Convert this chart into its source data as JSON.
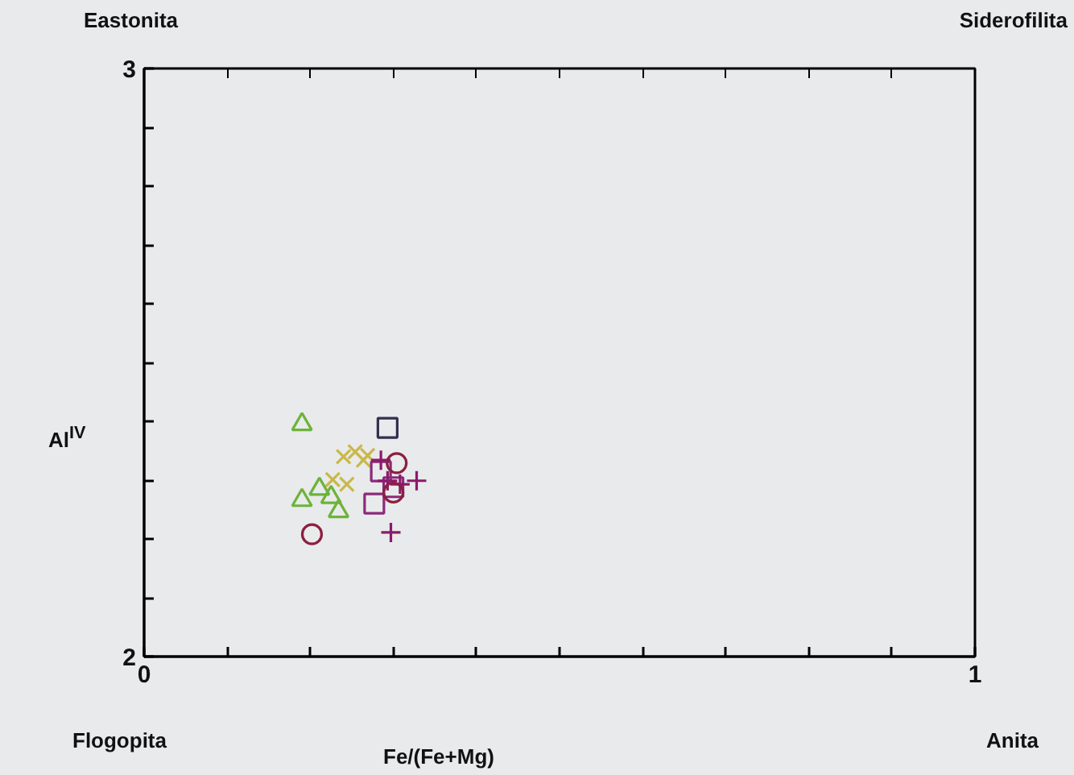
{
  "chart_data": {
    "type": "scatter",
    "xlabel": "Fe/(Fe+Mg)",
    "ylabel": "Al$^{IV}$",
    "xlim": [
      0,
      1
    ],
    "ylim": [
      2,
      3
    ],
    "xticks": [
      0,
      {
        "value": 0.1,
        "label": null
      },
      {
        "value": 0.2,
        "label": null
      },
      {
        "value": 0.3,
        "label": null
      },
      {
        "value": 0.4,
        "label": null
      },
      {
        "value": 0.5,
        "label": null
      },
      {
        "value": 0.6,
        "label": null
      },
      {
        "value": 0.7,
        "label": null
      },
      {
        "value": 0.8,
        "label": null
      },
      {
        "value": 0.9,
        "label": null
      },
      1
    ],
    "yticks": [
      2,
      {
        "value": 2.1,
        "label": null
      },
      {
        "value": 2.2,
        "label": null
      },
      {
        "value": 2.3,
        "label": null
      },
      {
        "value": 2.4,
        "label": null
      },
      {
        "value": 2.5,
        "label": null
      },
      {
        "value": 2.6,
        "label": null
      },
      {
        "value": 2.7,
        "label": null
      },
      {
        "value": 2.8,
        "label": null
      },
      {
        "value": 2.9,
        "label": null
      },
      3
    ],
    "grid": false,
    "annotations": [
      "Eastonita",
      "Siderofilita",
      "Flogopita",
      "Anita"
    ],
    "series": [
      {
        "color": "#6cb33a",
        "marker": "triangle",
        "x": [
          0.19,
          0.19,
          0.211,
          0.234,
          0.225
        ],
        "values": [
          2.395,
          2.266,
          2.285,
          2.247,
          2.271
        ]
      },
      {
        "color": "#c9b84a",
        "marker": "x",
        "x": [
          0.24,
          0.254,
          0.264,
          0.227,
          0.244,
          0.269
        ],
        "values": [
          2.34,
          2.348,
          2.334,
          2.301,
          2.293,
          2.342
        ]
      },
      {
        "color": "#303050",
        "marker": "square",
        "x": [
          0.293
        ],
        "values": [
          2.389
        ]
      },
      {
        "color": "#8b2a7a",
        "marker": "square",
        "x": [
          0.285,
          0.277,
          0.3
        ],
        "values": [
          2.315,
          2.26,
          2.288
        ]
      },
      {
        "color": "#8b1a6b",
        "marker": "cross",
        "x": [
          0.297,
          0.328,
          0.293,
          0.308,
          0.285
        ],
        "values": [
          2.211,
          2.299,
          2.299,
          2.293,
          2.334
        ]
      },
      {
        "color": "#8a2040",
        "marker": "circle",
        "x": [
          0.202,
          0.304,
          0.3
        ],
        "values": [
          2.208,
          2.329,
          2.279
        ]
      }
    ]
  }
}
